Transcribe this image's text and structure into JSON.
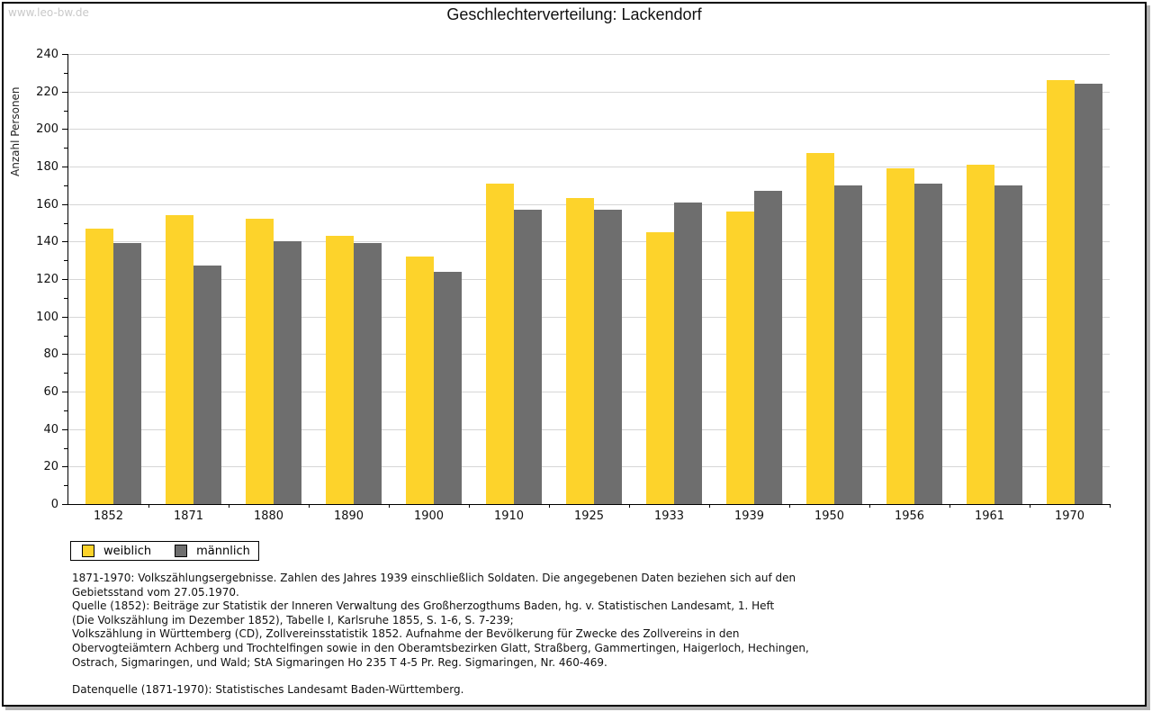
{
  "watermark": "www.leo-bw.de",
  "title": "Geschlechterverteilung: Lackendorf",
  "chart_data": {
    "type": "bar",
    "title": "Geschlechterverteilung: Lackendorf",
    "ylabel": "Anzahl Personen",
    "xlabel": "",
    "ylim": [
      0,
      240
    ],
    "ytick_step": 20,
    "ytick_minor_step": 10,
    "grid": true,
    "legend_position": "bottom-left",
    "categories": [
      "1852",
      "1871",
      "1880",
      "1890",
      "1900",
      "1910",
      "1925",
      "1933",
      "1939",
      "1950",
      "1956",
      "1961",
      "1970"
    ],
    "series": [
      {
        "name": "weiblich",
        "color": "#fdd32b",
        "values": [
          147,
          154,
          152,
          143,
          132,
          171,
          163,
          145,
          156,
          187,
          179,
          181,
          226
        ]
      },
      {
        "name": "männlich",
        "color": "#6e6e6e",
        "values": [
          139,
          127,
          140,
          139,
          124,
          157,
          157,
          161,
          167,
          170,
          171,
          170,
          224
        ]
      }
    ],
    "grid_color": "#d6d6d6",
    "axis_color": "#000000"
  },
  "footer": {
    "lines": [
      "1871-1970: Volkszählungsergebnisse. Zahlen des Jahres 1939 einschließlich Soldaten. Die angegebenen Daten beziehen sich auf den",
      "Gebietsstand vom 27.05.1970.",
      "Quelle (1852): Beiträge zur Statistik der Inneren Verwaltung des Großherzogthums Baden, hg. v. Statistischen Landesamt, 1. Heft",
      "(Die Volkszählung im Dezember 1852), Tabelle I, Karlsruhe 1855, S. 1-6, S. 7-239;",
      "Volkszählung in Württemberg (CD), Zollvereinsstatistik 1852. Aufnahme der Bevölkerung für Zwecke des Zollvereins in den",
      "Obervogteiämtern Achberg und Trochtelfingen sowie in den Oberamtsbezirken Glatt, Straßberg, Gammertingen, Haigerloch, Hechingen,",
      "Ostrach, Sigmaringen, und Wald; StA Sigmaringen Ho 235 T 4-5 Pr. Reg. Sigmaringen, Nr. 460-469."
    ],
    "datasource": "Datenquelle (1871-1970): Statistisches Landesamt Baden-Württemberg."
  }
}
